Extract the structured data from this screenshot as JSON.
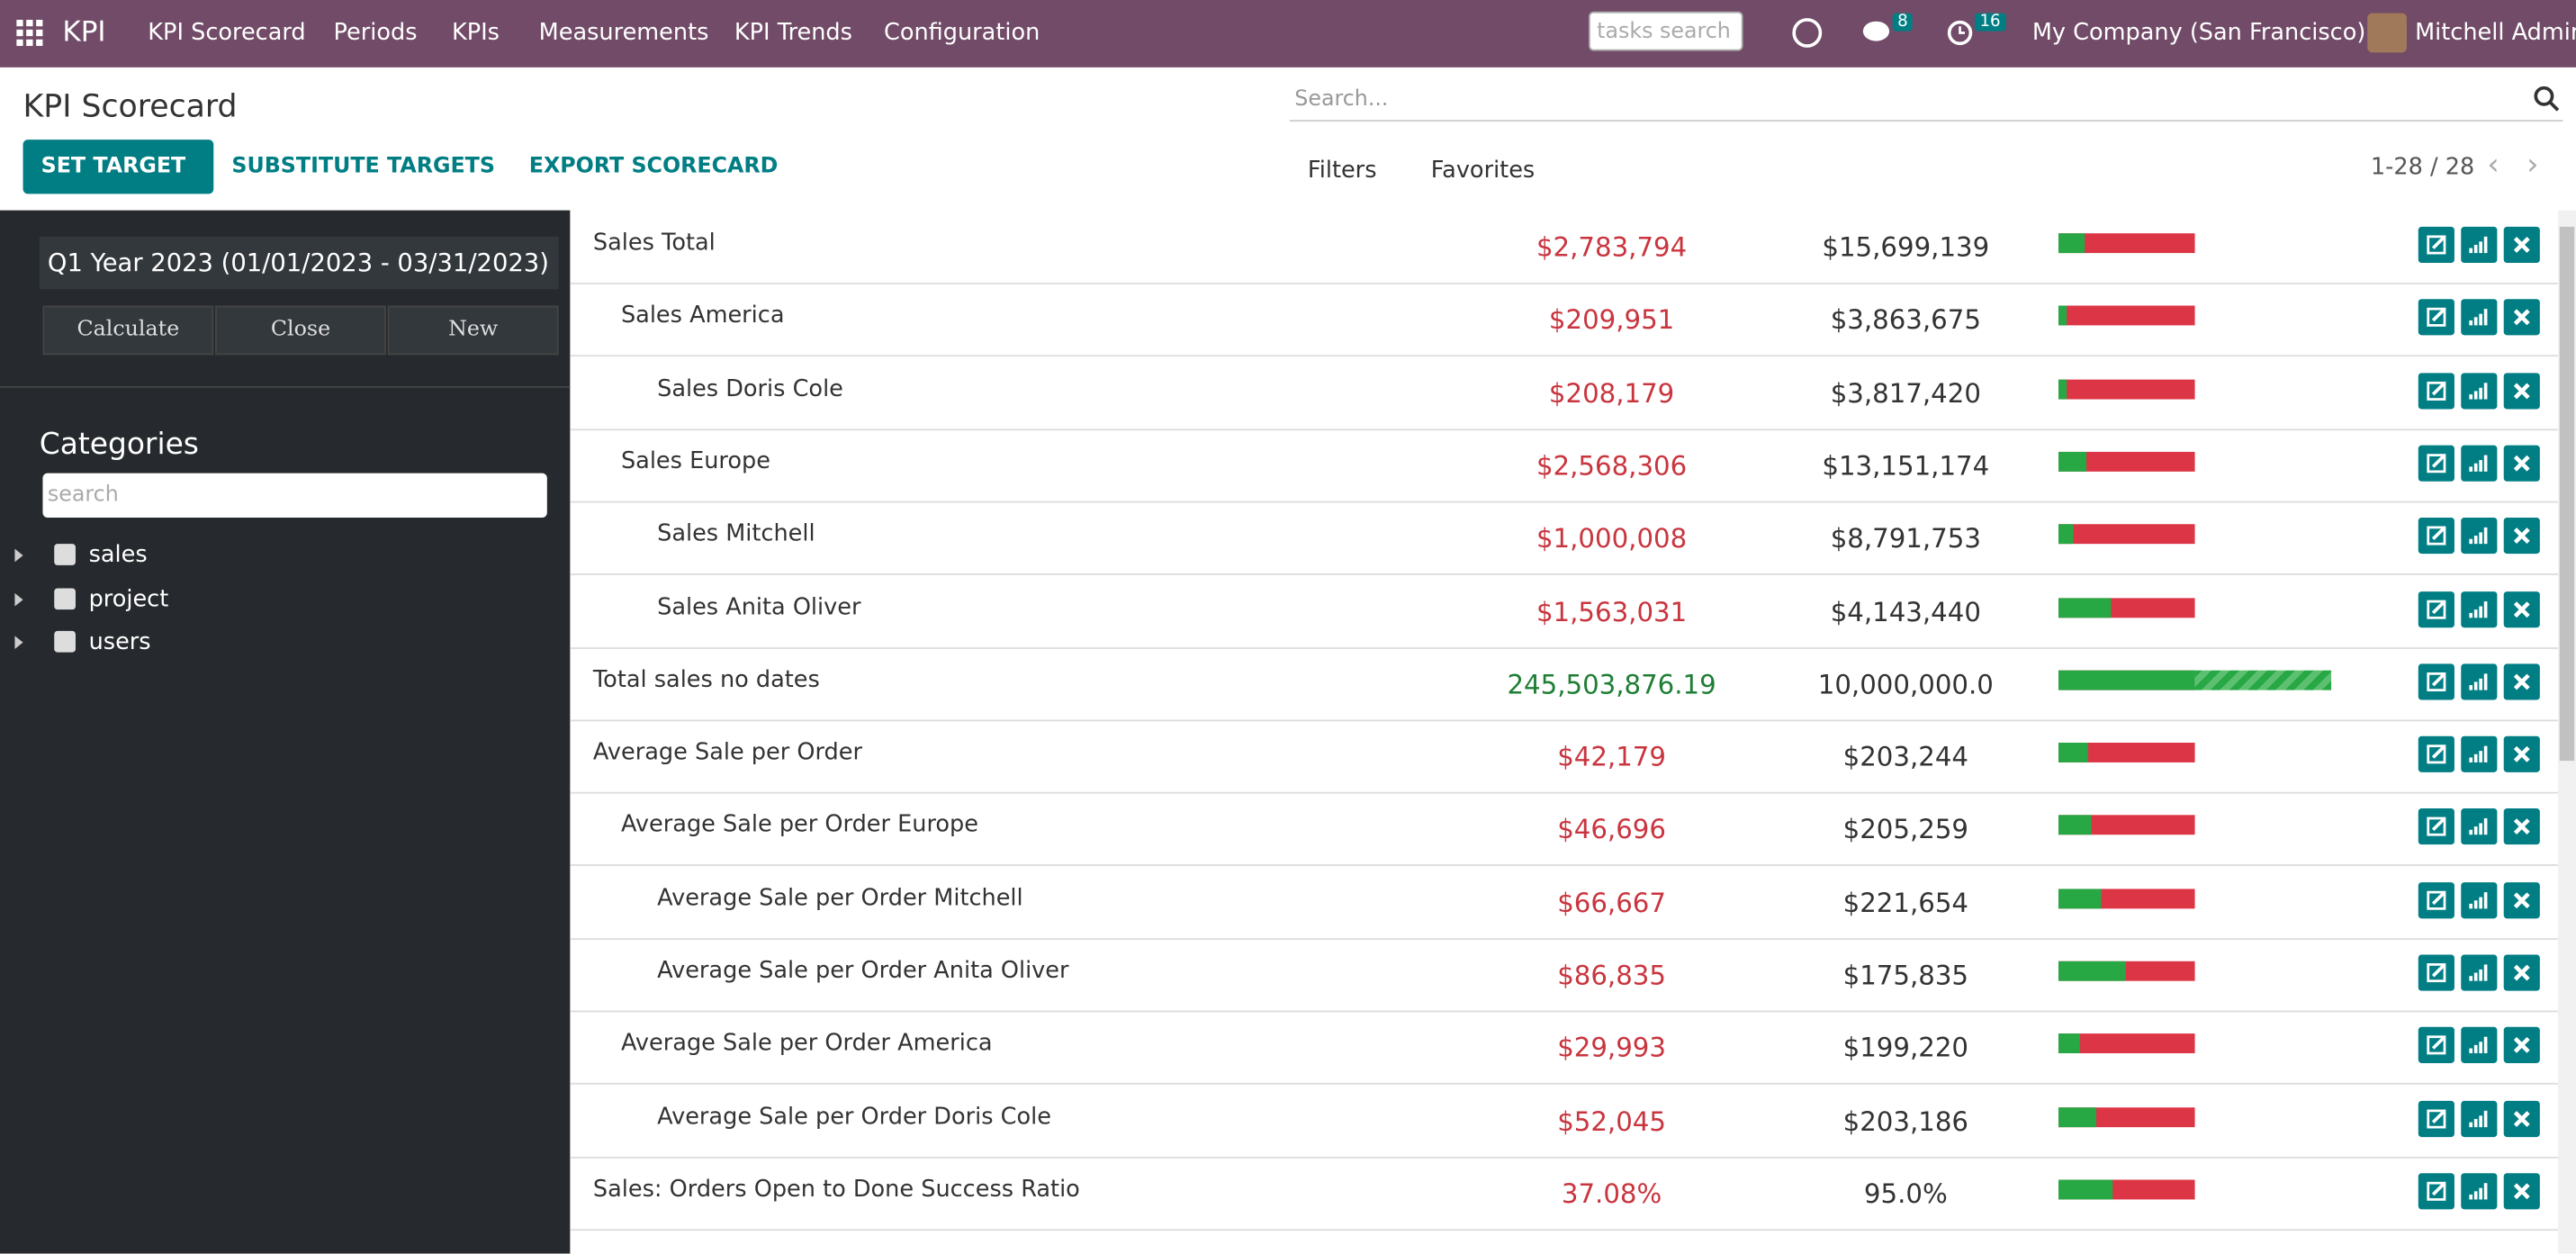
{
  "navbar": {
    "app": "KPI",
    "menu": [
      "KPI Scorecard",
      "Periods",
      "KPIs",
      "Measurements",
      "KPI Trends",
      "Configuration"
    ],
    "search_placeholder": "tasks search",
    "messages_badge": 8,
    "activities_badge": 16,
    "company": "My Company (San Francisco)",
    "user": "Mitchell Admin"
  },
  "header": {
    "title": "KPI Scorecard",
    "buttons": [
      "SET TARGET",
      "SUBSTITUTE TARGETS",
      "EXPORT SCORECARD"
    ],
    "search_placeholder": "Search...",
    "filters": "Filters",
    "favorites": "Favorites",
    "pager": "1-28 / 28"
  },
  "sidebar": {
    "period": "Q1 Year 2023 (01/01/2023 - 03/31/2023)",
    "buttons": [
      "Calculate",
      "Close",
      "New"
    ],
    "categories_title": "Categories",
    "search_placeholder": "search",
    "categories": [
      "sales",
      "project",
      "users"
    ]
  },
  "table": {
    "rows": [
      {
        "name": "Sales Total",
        "actual": "$2,783,794",
        "target": "$15,699,139",
        "status": "red",
        "progress": 19,
        "children": [
          {
            "name": "Sales America",
            "actual": "$209,951",
            "target": "$3,863,675",
            "status": "red",
            "progress": 6,
            "children": [
              {
                "name": "Sales Doris Cole",
                "actual": "$208,179",
                "target": "$3,817,420",
                "status": "red",
                "progress": 6
              }
            ]
          },
          {
            "name": "Sales Europe",
            "actual": "$2,568,306",
            "target": "$13,151,174",
            "status": "red",
            "progress": 20,
            "children": [
              {
                "name": "Sales Mitchell",
                "actual": "$1,000,008",
                "target": "$8,791,753",
                "status": "red",
                "progress": 11
              },
              {
                "name": "Sales Anita Oliver",
                "actual": "$1,563,031",
                "target": "$4,143,440",
                "status": "red",
                "progress": 38
              }
            ]
          }
        ]
      },
      {
        "name": "Total sales no dates",
        "actual": "245,503,876.19",
        "target": "10,000,000.0",
        "status": "green",
        "progress": 200
      },
      {
        "name": "Average Sale per Order",
        "actual": "$42,179",
        "target": "$203,244",
        "status": "red",
        "progress": 22,
        "children": [
          {
            "name": "Average Sale per Order Europe",
            "actual": "$46,696",
            "target": "$205,259",
            "status": "red",
            "progress": 24,
            "children": [
              {
                "name": "Average Sale per Order Mitchell",
                "actual": "$66,667",
                "target": "$221,654",
                "status": "red",
                "progress": 31
              },
              {
                "name": "Average Sale per Order Anita Oliver",
                "actual": "$86,835",
                "target": "$175,835",
                "status": "red",
                "progress": 49
              }
            ]
          },
          {
            "name": "Average Sale per Order America",
            "actual": "$29,993",
            "target": "$199,220",
            "status": "red",
            "progress": 16,
            "children": [
              {
                "name": "Average Sale per Order Doris Cole",
                "actual": "$52,045",
                "target": "$203,186",
                "status": "red",
                "progress": 28
              }
            ]
          }
        ]
      },
      {
        "name": "Sales: Orders Open to Done Success Ratio",
        "actual": "37.08%",
        "target": "95.0%",
        "status": "red",
        "progress": 40
      }
    ]
  }
}
